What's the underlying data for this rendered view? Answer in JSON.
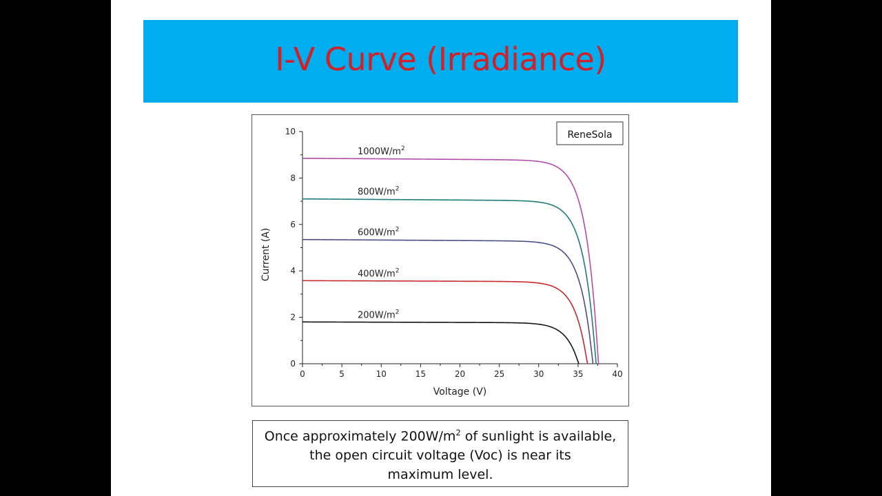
{
  "slide": {
    "title": "I-V Curve (Irradiance)",
    "caption": {
      "part1": "Once approximately 200W/m",
      "sup": "2",
      "part2": " of sunlight is available,",
      "line2": "the open circuit voltage (Voc) is near its",
      "line3": "maximum level."
    }
  },
  "colors": {
    "title_band": "#00adee",
    "title_text": "#d41f26"
  },
  "chart_data": {
    "type": "line",
    "source_label": "ReneSola",
    "xlabel": "Voltage (V)",
    "ylabel": "Current (A)",
    "xlim": [
      0,
      40
    ],
    "ylim": [
      0,
      10
    ],
    "xticks": [
      "0",
      "5",
      "10",
      "15",
      "20",
      "25",
      "30",
      "35",
      "40"
    ],
    "yticks": [
      "0",
      "2",
      "4",
      "6",
      "8",
      "10"
    ],
    "grid": false,
    "series": [
      {
        "name": "1000W/m",
        "sup": "2",
        "color": "#b44aa8",
        "isc": 8.85,
        "knee_i": 8.7,
        "voc": 37.6
      },
      {
        "name": "800W/m",
        "sup": "2",
        "color": "#1f7a7a",
        "isc": 7.1,
        "knee_i": 6.95,
        "voc": 37.3
      },
      {
        "name": "600W/m",
        "sup": "2",
        "color": "#4a4c8a",
        "isc": 5.35,
        "knee_i": 5.22,
        "voc": 36.9
      },
      {
        "name": "400W/m",
        "sup": "2",
        "color": "#c6282c",
        "isc": 3.58,
        "knee_i": 3.5,
        "voc": 36.2
      },
      {
        "name": "200W/m",
        "sup": "2",
        "color": "#111111",
        "isc": 1.8,
        "knee_i": 1.74,
        "voc": 35.1
      }
    ]
  }
}
